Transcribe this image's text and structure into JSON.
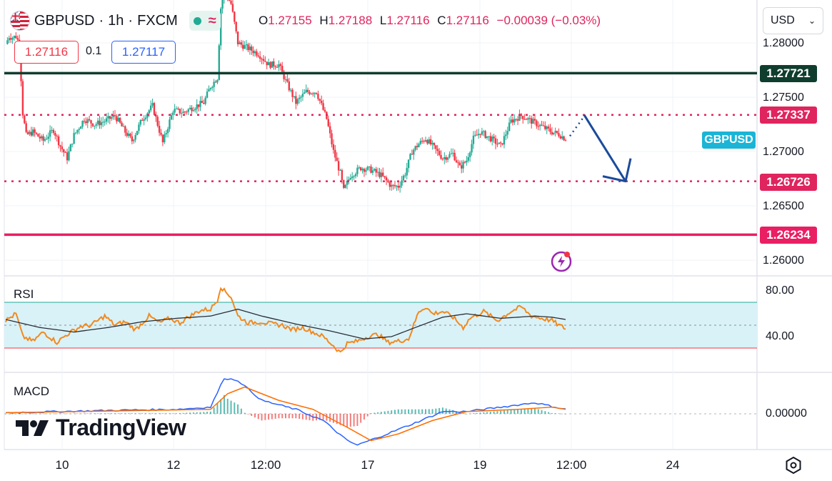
{
  "header": {
    "symbol": "GBPUSD",
    "sep1": "·",
    "interval": "1h",
    "sep2": "·",
    "source": "FXCM",
    "flag_icon": "uk-us-flag-icon",
    "ohlc": {
      "o_label": "O",
      "o_value": "1.27155",
      "h_label": "H",
      "h_value": "1.27188",
      "l_label": "L",
      "l_value": "1.27116",
      "c_label": "C",
      "c_value": "1.27116",
      "change": "−0.00039 (−0.03%)"
    }
  },
  "trade": {
    "sell_price": "1.27116",
    "spread": "0.1",
    "buy_price": "1.27117"
  },
  "currency_selector": {
    "value": "USD",
    "icon": "chevron-down-icon"
  },
  "price_scale": {
    "ticks": [
      "1.28000",
      "1.27500",
      "1.27000",
      "1.26500",
      "1.26000"
    ]
  },
  "price_tags": {
    "resistance_top": "1.27721",
    "current_level": "1.27337",
    "support_target": "1.26726",
    "support_bottom": "1.26234",
    "symbol_tag": "GBPUSD"
  },
  "rsi": {
    "title": "RSI",
    "ticks": [
      "80.00",
      "40.00"
    ]
  },
  "macd": {
    "title": "MACD",
    "ticks": [
      "0.00000"
    ]
  },
  "time_axis": {
    "labels": [
      "10",
      "12",
      "12:00",
      "17",
      "19",
      "12:00",
      "24"
    ]
  },
  "brand": {
    "name": "TradingView"
  },
  "colors": {
    "up": "#22ab94",
    "down": "#f23645",
    "level_dark": "#0f3d2e",
    "level_pink": "#e91e63",
    "dotted": "#e0245e",
    "arrow": "#1a4b9c",
    "rsi_line": "#f2891e",
    "rsi_ma": "#2a2e39",
    "rsi_band": "#d9f2f7",
    "macd_line": "#2962ff",
    "signal_line": "#ff6d00",
    "symbol_tag": "#1ab5d6"
  },
  "chart_data": {
    "type": "candlestick",
    "symbol": "GBPUSD",
    "interval": "1h",
    "ylim": [
      1.2585,
      1.2838
    ],
    "levels": [
      {
        "value": 1.27721,
        "style": "solid",
        "color": "#0f3d2e"
      },
      {
        "value": 1.27337,
        "style": "dotted",
        "color": "#e0245e"
      },
      {
        "value": 1.26726,
        "style": "dotted",
        "color": "#e0245e"
      },
      {
        "value": 1.26234,
        "style": "solid",
        "color": "#e91e63"
      }
    ],
    "close_path": [
      [
        0,
        1.2799
      ],
      [
        2,
        1.2806
      ],
      [
        4,
        1.2805
      ],
      [
        6,
        1.2806
      ],
      [
        8,
        1.2799
      ],
      [
        10,
        1.2735
      ],
      [
        12,
        1.2715
      ],
      [
        16,
        1.2718
      ],
      [
        22,
        1.271
      ],
      [
        28,
        1.272
      ],
      [
        32,
        1.2705
      ],
      [
        36,
        1.2694
      ],
      [
        40,
        1.2715
      ],
      [
        46,
        1.273
      ],
      [
        52,
        1.2725
      ],
      [
        58,
        1.2728
      ],
      [
        64,
        1.2733
      ],
      [
        70,
        1.2718
      ],
      [
        74,
        1.271
      ],
      [
        80,
        1.273
      ],
      [
        86,
        1.2742
      ],
      [
        92,
        1.2708
      ],
      [
        98,
        1.2738
      ],
      [
        104,
        1.2736
      ],
      [
        110,
        1.2741
      ],
      [
        116,
        1.2745
      ],
      [
        120,
        1.276
      ],
      [
        124,
        1.2768
      ],
      [
        126,
        1.2832
      ],
      [
        128,
        1.2848
      ],
      [
        132,
        1.2836
      ],
      [
        136,
        1.28
      ],
      [
        142,
        1.2795
      ],
      [
        148,
        1.279
      ],
      [
        154,
        1.278
      ],
      [
        160,
        1.278
      ],
      [
        164,
        1.2765
      ],
      [
        170,
        1.2745
      ],
      [
        176,
        1.2755
      ],
      [
        182,
        1.2755
      ],
      [
        188,
        1.273
      ],
      [
        192,
        1.27
      ],
      [
        196,
        1.268
      ],
      [
        198,
        1.2664
      ],
      [
        202,
        1.2678
      ],
      [
        208,
        1.2685
      ],
      [
        214,
        1.2683
      ],
      [
        220,
        1.2678
      ],
      [
        226,
        1.2668
      ],
      [
        230,
        1.2668
      ],
      [
        234,
        1.268
      ],
      [
        238,
        1.27
      ],
      [
        242,
        1.2707
      ],
      [
        246,
        1.2712
      ],
      [
        250,
        1.2705
      ],
      [
        256,
        1.2694
      ],
      [
        262,
        1.2698
      ],
      [
        266,
        1.2685
      ],
      [
        270,
        1.2692
      ],
      [
        274,
        1.2712
      ],
      [
        278,
        1.2718
      ],
      [
        284,
        1.2712
      ],
      [
        290,
        1.2705
      ],
      [
        296,
        1.2728
      ],
      [
        302,
        1.2733
      ],
      [
        308,
        1.2728
      ],
      [
        314,
        1.2723
      ],
      [
        320,
        1.2718
      ],
      [
        324,
        1.2716
      ],
      [
        328,
        1.27116
      ]
    ],
    "forecast_arrow": {
      "from": [
        336,
        1.27337
      ],
      "to": [
        364,
        1.26726
      ]
    },
    "rsi": {
      "ylim": [
        20,
        90
      ],
      "band": [
        30,
        70
      ],
      "mid": 50,
      "path": [
        [
          0,
          54
        ],
        [
          6,
          60
        ],
        [
          10,
          40
        ],
        [
          16,
          36
        ],
        [
          22,
          44
        ],
        [
          30,
          35
        ],
        [
          36,
          42
        ],
        [
          44,
          49
        ],
        [
          50,
          50
        ],
        [
          58,
          58
        ],
        [
          64,
          50
        ],
        [
          70,
          53
        ],
        [
          76,
          46
        ],
        [
          84,
          58
        ],
        [
          90,
          52
        ],
        [
          96,
          56
        ],
        [
          102,
          52
        ],
        [
          108,
          58
        ],
        [
          114,
          63
        ],
        [
          120,
          64
        ],
        [
          124,
          72
        ],
        [
          126,
          84
        ],
        [
          128,
          80
        ],
        [
          132,
          75
        ],
        [
          136,
          58
        ],
        [
          142,
          52
        ],
        [
          150,
          53
        ],
        [
          156,
          51
        ],
        [
          162,
          50
        ],
        [
          168,
          46
        ],
        [
          174,
          48
        ],
        [
          180,
          44
        ],
        [
          186,
          40
        ],
        [
          192,
          32
        ],
        [
          196,
          26
        ],
        [
          200,
          34
        ],
        [
          206,
          36
        ],
        [
          212,
          40
        ],
        [
          218,
          42
        ],
        [
          224,
          35
        ],
        [
          230,
          36
        ],
        [
          236,
          38
        ],
        [
          242,
          62
        ],
        [
          246,
          66
        ],
        [
          250,
          60
        ],
        [
          256,
          62
        ],
        [
          262,
          57
        ],
        [
          268,
          48
        ],
        [
          272,
          56
        ],
        [
          280,
          62
        ],
        [
          288,
          54
        ],
        [
          296,
          62
        ],
        [
          302,
          66
        ],
        [
          308,
          58
        ],
        [
          314,
          56
        ],
        [
          320,
          54
        ],
        [
          324,
          50
        ],
        [
          328,
          47
        ]
      ],
      "ma_path": [
        [
          0,
          55
        ],
        [
          20,
          48
        ],
        [
          40,
          44
        ],
        [
          60,
          48
        ],
        [
          80,
          53
        ],
        [
          100,
          56
        ],
        [
          120,
          58
        ],
        [
          136,
          64
        ],
        [
          150,
          58
        ],
        [
          170,
          51
        ],
        [
          190,
          45
        ],
        [
          210,
          38
        ],
        [
          226,
          40
        ],
        [
          240,
          48
        ],
        [
          256,
          57
        ],
        [
          270,
          60
        ],
        [
          290,
          56
        ],
        [
          310,
          58
        ],
        [
          320,
          57
        ],
        [
          328,
          55
        ]
      ]
    },
    "macd": {
      "ylim": [
        -0.0017,
        0.002
      ],
      "macd_path": [
        [
          0,
          5e-05
        ],
        [
          30,
          0.0001
        ],
        [
          60,
          0.00015
        ],
        [
          100,
          0.0002
        ],
        [
          120,
          0.0003
        ],
        [
          128,
          0.0016
        ],
        [
          136,
          0.0015
        ],
        [
          150,
          0.0006
        ],
        [
          170,
          0.0002
        ],
        [
          186,
          -0.0003
        ],
        [
          200,
          -0.0012
        ],
        [
          206,
          -0.0014
        ],
        [
          220,
          -0.001
        ],
        [
          240,
          -0.0004
        ],
        [
          256,
          0.0001
        ],
        [
          270,
          0.0001
        ],
        [
          290,
          0.0003
        ],
        [
          310,
          0.0005
        ],
        [
          328,
          0.0002
        ]
      ],
      "signal_path": [
        [
          0,
          5e-05
        ],
        [
          40,
          0.0001
        ],
        [
          80,
          0.00015
        ],
        [
          120,
          0.0002
        ],
        [
          130,
          0.0009
        ],
        [
          140,
          0.0012
        ],
        [
          160,
          0.0006
        ],
        [
          180,
          0.0002
        ],
        [
          200,
          -0.0006
        ],
        [
          214,
          -0.0012
        ],
        [
          230,
          -0.0009
        ],
        [
          250,
          -0.0003
        ],
        [
          270,
          0.0001
        ],
        [
          300,
          0.0002
        ],
        [
          320,
          0.0003
        ],
        [
          328,
          0.0002
        ]
      ]
    }
  }
}
